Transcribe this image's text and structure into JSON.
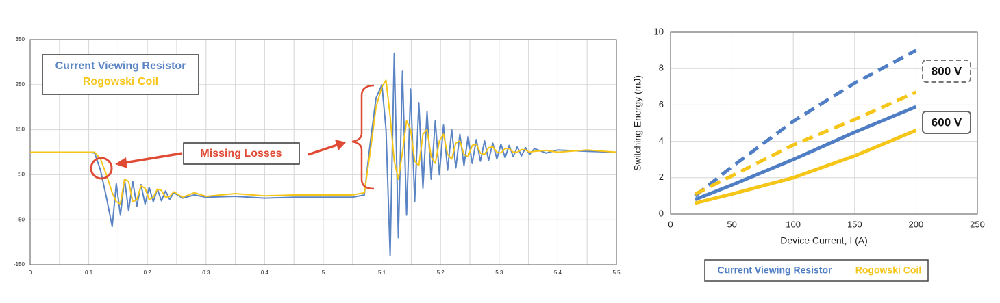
{
  "chart_data": [
    {
      "type": "line",
      "x": [
        0,
        0.05,
        0.1,
        0.11,
        0.12,
        0.13,
        0.14,
        0.147,
        0.154,
        0.161,
        0.168,
        0.175,
        0.182,
        0.189,
        0.196,
        0.203,
        0.21,
        0.217,
        0.224,
        0.231,
        0.238,
        0.245,
        0.26,
        0.28,
        0.3,
        0.35,
        0.4,
        0.45,
        0.5,
        0.55,
        0.57,
        0.58,
        0.59,
        0.6,
        0.607,
        0.614,
        0.621,
        0.628,
        0.635,
        0.642,
        0.649,
        0.656,
        0.663,
        0.67,
        0.677,
        0.684,
        0.691,
        0.698,
        0.705,
        0.712,
        0.719,
        0.726,
        0.733,
        0.74,
        0.747,
        0.754,
        0.761,
        0.768,
        0.775,
        0.782,
        0.789,
        0.796,
        0.803,
        0.81,
        0.817,
        0.824,
        0.831,
        0.838,
        0.845,
        0.852,
        0.86,
        0.88,
        0.9,
        0.95,
        1.0
      ],
      "series": [
        {
          "name": "Current Viewing Resistor",
          "color": "#5b84c4",
          "values": [
            100,
            100,
            100,
            98,
            60,
            0,
            -65,
            30,
            -40,
            40,
            -30,
            35,
            -20,
            28,
            -15,
            22,
            -10,
            18,
            -8,
            14,
            -5,
            10,
            -2,
            5,
            0,
            2,
            -2,
            0,
            0,
            0,
            5,
            120,
            220,
            250,
            150,
            -130,
            320,
            -90,
            280,
            -40,
            240,
            -10,
            210,
            20,
            190,
            40,
            170,
            50,
            160,
            60,
            150,
            65,
            140,
            70,
            135,
            75,
            128,
            80,
            125,
            82,
            120,
            85,
            118,
            88,
            115,
            90,
            112,
            92,
            110,
            95,
            108,
            98,
            105,
            102,
            100
          ]
        },
        {
          "name": "Rogowski Coil",
          "color": "#f5c518",
          "values": [
            100,
            100,
            100,
            100,
            85,
            50,
            10,
            -10,
            -15,
            40,
            35,
            -10,
            -5,
            25,
            20,
            -5,
            0,
            18,
            15,
            0,
            2,
            12,
            0,
            10,
            2,
            8,
            3,
            5,
            5,
            5,
            10,
            100,
            200,
            245,
            260,
            180,
            80,
            40,
            100,
            170,
            150,
            80,
            70,
            140,
            150,
            90,
            75,
            125,
            140,
            95,
            85,
            120,
            125,
            95,
            90,
            115,
            118,
            98,
            95,
            110,
            112,
            100,
            98,
            108,
            108,
            100,
            100,
            106,
            105,
            100,
            102,
            104,
            100,
            105,
            100
          ]
        }
      ],
      "xlim": [
        0,
        1
      ],
      "xticks": [
        0,
        0.1,
        0.2,
        0.3,
        0.4,
        {
          "value": 0.5,
          "label": "5"
        },
        {
          "value": 0.6,
          "label": "5.1"
        },
        {
          "value": 0.7,
          "label": "5.2"
        },
        {
          "value": 0.8,
          "label": "5.3"
        },
        {
          "value": 0.9,
          "label": "5.4"
        },
        {
          "value": 1.0,
          "label": "5.5"
        }
      ],
      "ylim": [
        -150,
        350
      ],
      "yticks": [
        -150,
        -50,
        50,
        150,
        250,
        350
      ],
      "grid": true,
      "annotations": [
        "Missing Losses"
      ]
    },
    {
      "type": "line",
      "x": [
        20,
        50,
        100,
        150,
        200
      ],
      "series": [
        {
          "color": "#4f7ec4",
          "dashed": true,
          "values": [
            1.0,
            2.6,
            5.1,
            7.2,
            9.0
          ]
        },
        {
          "color": "#f5c518",
          "dashed": true,
          "values": [
            1.1,
            2.1,
            3.8,
            5.2,
            6.7
          ]
        },
        {
          "color": "#4f7ec4",
          "dashed": false,
          "values": [
            0.8,
            1.6,
            3.0,
            4.5,
            5.9
          ]
        },
        {
          "color": "#f5c518",
          "dashed": false,
          "values": [
            0.6,
            1.1,
            2.0,
            3.2,
            4.6
          ]
        }
      ],
      "xlabel": "Device Current, I (A)",
      "ylabel": "Switching Energy (mJ)",
      "xlim": [
        0,
        250
      ],
      "xticks": [
        0,
        50,
        100,
        150,
        200,
        250
      ],
      "ylim": [
        0,
        10
      ],
      "yticks": [
        0,
        2,
        4,
        6,
        8,
        10
      ],
      "grid": true,
      "legend": [
        {
          "name": "Current Viewing Resistor",
          "color": "#4f7ec4"
        },
        {
          "name": "Rogowski Coil",
          "color": "#f5c518"
        }
      ],
      "annotations": [
        {
          "text": "800 V",
          "dashed": true
        },
        {
          "text": "600 V",
          "dashed": false
        }
      ]
    }
  ]
}
